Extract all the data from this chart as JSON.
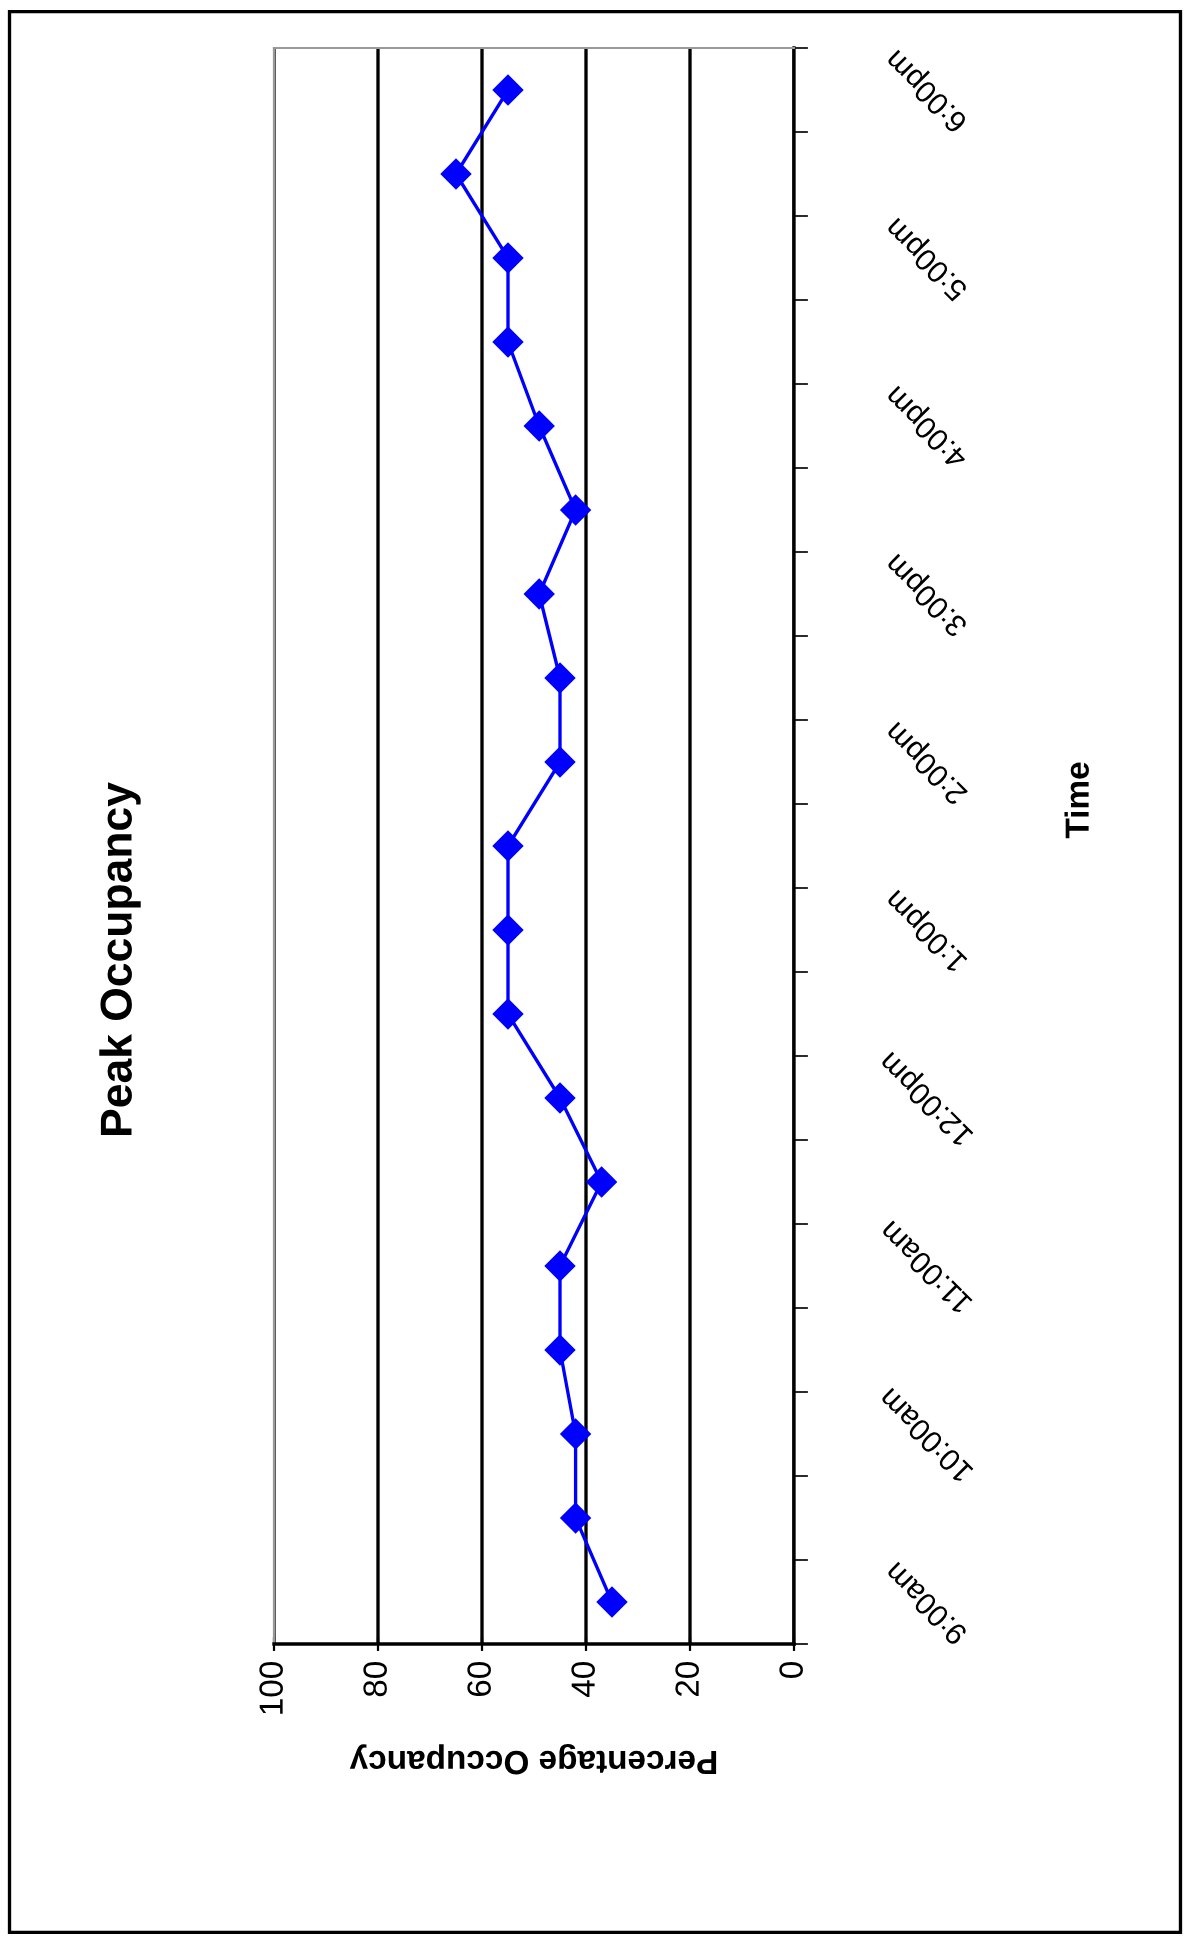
{
  "chart_data": {
    "type": "line",
    "orientation": "horizontal",
    "title": "Peak Occupancy",
    "xlabel": "Percentage Occupancy",
    "ylabel": "Time",
    "categories": [
      "6:00pm",
      null,
      "5:00pm",
      null,
      "4:00pm",
      null,
      "3:00pm",
      null,
      "2:00pm",
      null,
      "1:00pm",
      null,
      "12:00pm",
      null,
      "11:00am",
      null,
      "10:00am",
      null,
      "9:00am"
    ],
    "series": [
      {
        "color": "#0000ff",
        "values": [
          55,
          65,
          55,
          55,
          49,
          42,
          49,
          45,
          45,
          55,
          55,
          55,
          45,
          37,
          45,
          45,
          42,
          42,
          35
        ]
      }
    ],
    "xlim": [
      100,
      0
    ],
    "xticks": [
      0,
      20,
      40,
      60,
      80,
      100
    ],
    "grid": "x",
    "marker": "diamond",
    "line_style": "solid"
  }
}
